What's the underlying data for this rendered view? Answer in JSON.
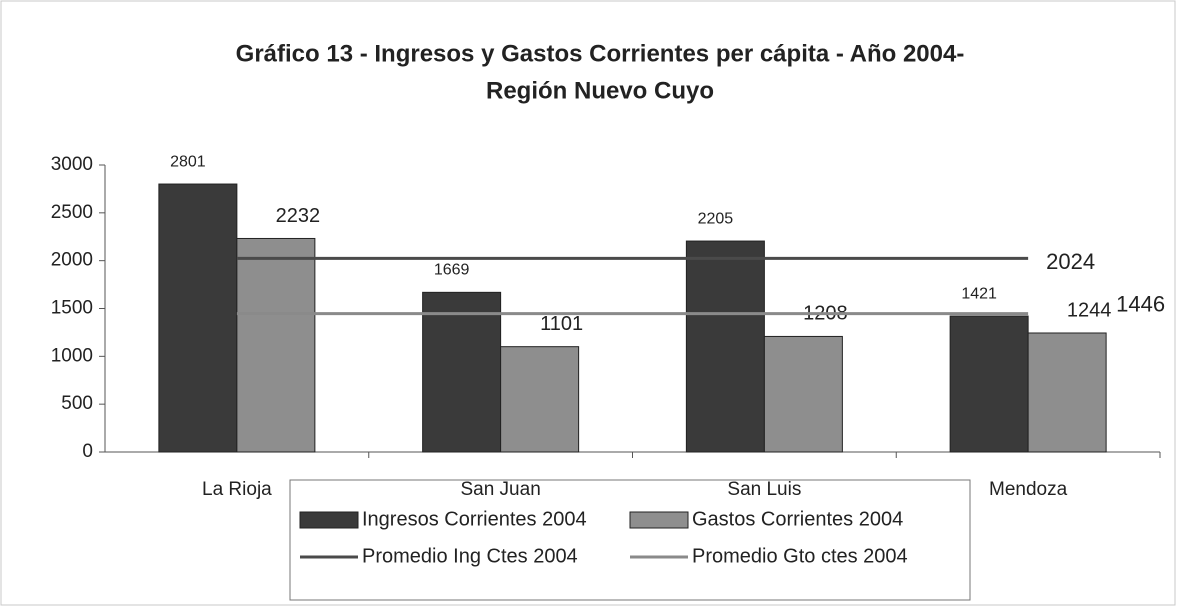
{
  "chart_data": {
    "type": "bar",
    "title": [
      "Gráfico 13 - Ingresos y Gastos Corrientes per cápita - Año 2004-",
      "Región Nuevo Cuyo"
    ],
    "categories": [
      "La Rioja",
      "San Juan",
      "San Luis",
      "Mendoza"
    ],
    "series": [
      {
        "name": "Ingresos Corrientes 2004",
        "type": "bar",
        "color": "#3a3a3a",
        "values": [
          2801,
          1669,
          2205,
          1421
        ]
      },
      {
        "name": "Gastos Corrientes 2004",
        "type": "bar",
        "color": "#8e8e8e",
        "values": [
          2232,
          1101,
          1208,
          1244
        ]
      },
      {
        "name": "Promedio Ing Ctes 2004",
        "type": "line",
        "color": "#4a4a4a",
        "values": [
          2024,
          2024,
          2024,
          2024
        ]
      },
      {
        "name": "Promedio Gto ctes 2004",
        "type": "line",
        "color": "#8a8a8a",
        "values": [
          1446,
          1446,
          1446,
          1446
        ]
      }
    ],
    "ylim": [
      0,
      3000
    ],
    "yticks": [
      0,
      500,
      1000,
      1500,
      2000,
      2500,
      3000
    ],
    "grid": false,
    "legend": "bottom"
  }
}
